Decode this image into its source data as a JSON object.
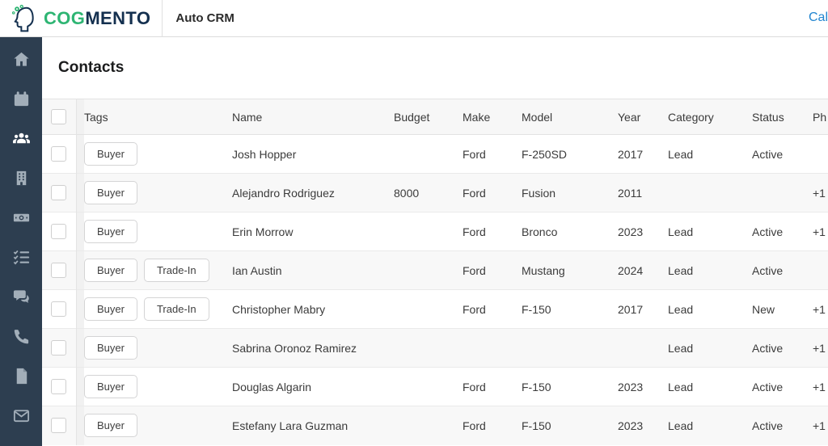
{
  "topbar": {
    "brand": {
      "cog": "COG",
      "mento": "MENTO"
    },
    "app_title": "Auto CRM",
    "nav_link": "Cal"
  },
  "colors": {
    "brand_green": "#2eb573",
    "brand_navy": "#14304f",
    "sidebar_bg": "#2d3e50",
    "link_blue": "#2185d0"
  },
  "sidebar": {
    "items": [
      {
        "icon": "home-icon",
        "active": false
      },
      {
        "icon": "calendar-icon",
        "active": false
      },
      {
        "icon": "contacts-users-icon",
        "active": true
      },
      {
        "icon": "company-building-icon",
        "active": false
      },
      {
        "icon": "deals-money-icon",
        "active": false
      },
      {
        "icon": "tasks-checklist-icon",
        "active": false
      },
      {
        "icon": "chat-icon",
        "active": false
      },
      {
        "icon": "calls-phone-icon",
        "active": false
      },
      {
        "icon": "documents-file-icon",
        "active": false
      },
      {
        "icon": "email-envelope-icon",
        "active": false
      }
    ]
  },
  "page": {
    "title": "Contacts"
  },
  "table": {
    "columns": {
      "tags": "Tags",
      "name": "Name",
      "budget": "Budget",
      "make": "Make",
      "model": "Model",
      "year": "Year",
      "category": "Category",
      "status": "Status",
      "phone": "Ph"
    },
    "rows": [
      {
        "tags": [
          "Buyer"
        ],
        "name": "Josh Hopper",
        "budget": "",
        "make": "Ford",
        "model": "F-250SD",
        "year": "2017",
        "category": "Lead",
        "status": "Active",
        "phone": ""
      },
      {
        "tags": [
          "Buyer"
        ],
        "name": "Alejandro Rodriguez",
        "budget": "8000",
        "make": "Ford",
        "model": "Fusion",
        "year": "2011",
        "category": "",
        "status": "",
        "phone": "+1"
      },
      {
        "tags": [
          "Buyer"
        ],
        "name": "Erin Morrow",
        "budget": "",
        "make": "Ford",
        "model": "Bronco",
        "year": "2023",
        "category": "Lead",
        "status": "Active",
        "phone": "+1"
      },
      {
        "tags": [
          "Buyer",
          "Trade-In"
        ],
        "name": "Ian Austin",
        "budget": "",
        "make": "Ford",
        "model": "Mustang",
        "year": "2024",
        "category": "Lead",
        "status": "Active",
        "phone": ""
      },
      {
        "tags": [
          "Buyer",
          "Trade-In"
        ],
        "name": "Christopher Mabry",
        "budget": "",
        "make": "Ford",
        "model": "F-150",
        "year": "2017",
        "category": "Lead",
        "status": "New",
        "phone": "+1"
      },
      {
        "tags": [
          "Buyer"
        ],
        "name": "Sabrina Oronoz Ramirez",
        "budget": "",
        "make": "",
        "model": "",
        "year": "",
        "category": "Lead",
        "status": "Active",
        "phone": "+1"
      },
      {
        "tags": [
          "Buyer"
        ],
        "name": "Douglas Algarin",
        "budget": "",
        "make": "Ford",
        "model": "F-150",
        "year": "2023",
        "category": "Lead",
        "status": "Active",
        "phone": "+1"
      },
      {
        "tags": [
          "Buyer"
        ],
        "name": "Estefany Lara Guzman",
        "budget": "",
        "make": "Ford",
        "model": "F-150",
        "year": "2023",
        "category": "Lead",
        "status": "Active",
        "phone": "+1"
      }
    ]
  }
}
